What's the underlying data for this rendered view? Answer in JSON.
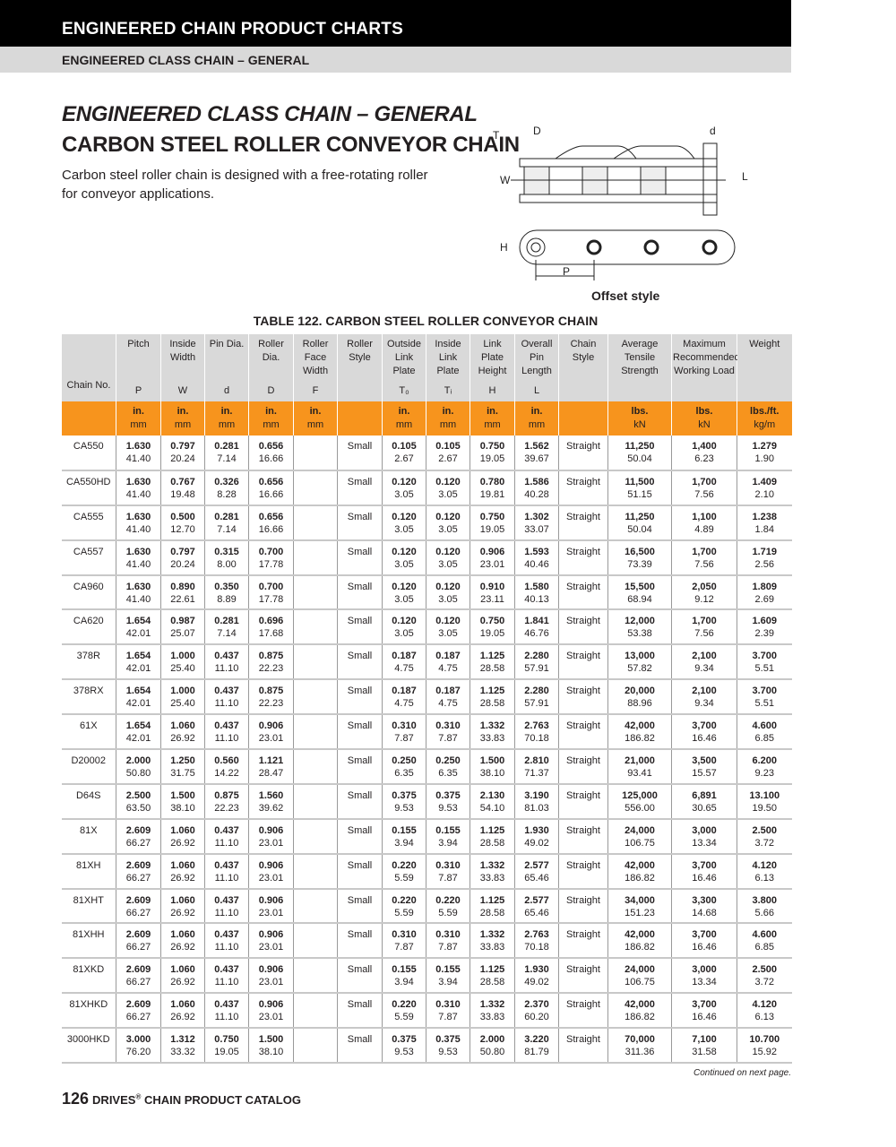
{
  "header": {
    "section": "ENGINEERED CHAIN PRODUCT CHARTS",
    "subsection": "ENGINEERED CLASS CHAIN – GENERAL"
  },
  "title": {
    "line1": "ENGINEERED CLASS CHAIN – GENERAL",
    "line2": "CARBON STEEL ROLLER CONVEYOR CHAIN",
    "description": "Carbon steel roller chain is designed with a free-rotating roller for conveyor applications."
  },
  "diagram": {
    "labels": [
      "T",
      "D",
      "d",
      "W",
      "L",
      "H",
      "P"
    ],
    "caption": "Offset style"
  },
  "table": {
    "title": "TABLE 122. CARBON STEEL ROLLER CONVEYOR CHAIN",
    "columns": [
      {
        "label": "Chain No.",
        "symbol": ""
      },
      {
        "label": "Pitch",
        "symbol": "P"
      },
      {
        "label": "Inside Width",
        "symbol": "W"
      },
      {
        "label": "Pin Dia.",
        "symbol": "d"
      },
      {
        "label": "Roller Dia.",
        "symbol": "D"
      },
      {
        "label": "Roller Face Width",
        "symbol": "F"
      },
      {
        "label": "Roller Style",
        "symbol": ""
      },
      {
        "label": "Outside Link Plate",
        "symbol": "T₀"
      },
      {
        "label": "Inside Link Plate",
        "symbol": "Tᵢ"
      },
      {
        "label": "Link Plate Height",
        "symbol": "H"
      },
      {
        "label": "Overall Pin Length",
        "symbol": "L"
      },
      {
        "label": "Chain Style",
        "symbol": ""
      },
      {
        "label": "Average Tensile Strength",
        "symbol": ""
      },
      {
        "label": "Maximum Recommended Working Load",
        "symbol": ""
      },
      {
        "label": "Weight",
        "symbol": ""
      }
    ],
    "units": [
      [
        "",
        ""
      ],
      [
        "in.",
        "mm"
      ],
      [
        "in.",
        "mm"
      ],
      [
        "in.",
        "mm"
      ],
      [
        "in.",
        "mm"
      ],
      [
        "in.",
        "mm"
      ],
      [
        "",
        ""
      ],
      [
        "in.",
        "mm"
      ],
      [
        "in.",
        "mm"
      ],
      [
        "in.",
        "mm"
      ],
      [
        "in.",
        "mm"
      ],
      [
        "",
        ""
      ],
      [
        "lbs.",
        "kN"
      ],
      [
        "lbs.",
        "kN"
      ],
      [
        "lbs./ft.",
        "kg/m"
      ]
    ],
    "rows": [
      [
        "CA550",
        [
          "1.630",
          "41.40"
        ],
        [
          "0.797",
          "20.24"
        ],
        [
          "0.281",
          "7.14"
        ],
        [
          "0.656",
          "16.66"
        ],
        "",
        "Small",
        [
          "0.105",
          "2.67"
        ],
        [
          "0.105",
          "2.67"
        ],
        [
          "0.750",
          "19.05"
        ],
        [
          "1.562",
          "39.67"
        ],
        "Straight",
        [
          "11,250",
          "50.04"
        ],
        [
          "1,400",
          "6.23"
        ],
        [
          "1.279",
          "1.90"
        ]
      ],
      [
        "CA550HD",
        [
          "1.630",
          "41.40"
        ],
        [
          "0.767",
          "19.48"
        ],
        [
          "0.326",
          "8.28"
        ],
        [
          "0.656",
          "16.66"
        ],
        "",
        "Small",
        [
          "0.120",
          "3.05"
        ],
        [
          "0.120",
          "3.05"
        ],
        [
          "0.780",
          "19.81"
        ],
        [
          "1.586",
          "40.28"
        ],
        "Straight",
        [
          "11,500",
          "51.15"
        ],
        [
          "1,700",
          "7.56"
        ],
        [
          "1.409",
          "2.10"
        ]
      ],
      [
        "CA555",
        [
          "1.630",
          "41.40"
        ],
        [
          "0.500",
          "12.70"
        ],
        [
          "0.281",
          "7.14"
        ],
        [
          "0.656",
          "16.66"
        ],
        "",
        "Small",
        [
          "0.120",
          "3.05"
        ],
        [
          "0.120",
          "3.05"
        ],
        [
          "0.750",
          "19.05"
        ],
        [
          "1.302",
          "33.07"
        ],
        "Straight",
        [
          "11,250",
          "50.04"
        ],
        [
          "1,100",
          "4.89"
        ],
        [
          "1.238",
          "1.84"
        ]
      ],
      [
        "CA557",
        [
          "1.630",
          "41.40"
        ],
        [
          "0.797",
          "20.24"
        ],
        [
          "0.315",
          "8.00"
        ],
        [
          "0.700",
          "17.78"
        ],
        "",
        "Small",
        [
          "0.120",
          "3.05"
        ],
        [
          "0.120",
          "3.05"
        ],
        [
          "0.906",
          "23.01"
        ],
        [
          "1.593",
          "40.46"
        ],
        "Straight",
        [
          "16,500",
          "73.39"
        ],
        [
          "1,700",
          "7.56"
        ],
        [
          "1.719",
          "2.56"
        ]
      ],
      [
        "CA960",
        [
          "1.630",
          "41.40"
        ],
        [
          "0.890",
          "22.61"
        ],
        [
          "0.350",
          "8.89"
        ],
        [
          "0.700",
          "17.78"
        ],
        "",
        "Small",
        [
          "0.120",
          "3.05"
        ],
        [
          "0.120",
          "3.05"
        ],
        [
          "0.910",
          "23.11"
        ],
        [
          "1.580",
          "40.13"
        ],
        "Straight",
        [
          "15,500",
          "68.94"
        ],
        [
          "2,050",
          "9.12"
        ],
        [
          "1.809",
          "2.69"
        ]
      ],
      [
        "CA620",
        [
          "1.654",
          "42.01"
        ],
        [
          "0.987",
          "25.07"
        ],
        [
          "0.281",
          "7.14"
        ],
        [
          "0.696",
          "17.68"
        ],
        "",
        "Small",
        [
          "0.120",
          "3.05"
        ],
        [
          "0.120",
          "3.05"
        ],
        [
          "0.750",
          "19.05"
        ],
        [
          "1.841",
          "46.76"
        ],
        "Straight",
        [
          "12,000",
          "53.38"
        ],
        [
          "1,700",
          "7.56"
        ],
        [
          "1.609",
          "2.39"
        ]
      ],
      [
        "378R",
        [
          "1.654",
          "42.01"
        ],
        [
          "1.000",
          "25.40"
        ],
        [
          "0.437",
          "11.10"
        ],
        [
          "0.875",
          "22.23"
        ],
        "",
        "Small",
        [
          "0.187",
          "4.75"
        ],
        [
          "0.187",
          "4.75"
        ],
        [
          "1.125",
          "28.58"
        ],
        [
          "2.280",
          "57.91"
        ],
        "Straight",
        [
          "13,000",
          "57.82"
        ],
        [
          "2,100",
          "9.34"
        ],
        [
          "3.700",
          "5.51"
        ]
      ],
      [
        "378RX",
        [
          "1.654",
          "42.01"
        ],
        [
          "1.000",
          "25.40"
        ],
        [
          "0.437",
          "11.10"
        ],
        [
          "0.875",
          "22.23"
        ],
        "",
        "Small",
        [
          "0.187",
          "4.75"
        ],
        [
          "0.187",
          "4.75"
        ],
        [
          "1.125",
          "28.58"
        ],
        [
          "2.280",
          "57.91"
        ],
        "Straight",
        [
          "20,000",
          "88.96"
        ],
        [
          "2,100",
          "9.34"
        ],
        [
          "3.700",
          "5.51"
        ]
      ],
      [
        "61X",
        [
          "1.654",
          "42.01"
        ],
        [
          "1.060",
          "26.92"
        ],
        [
          "0.437",
          "11.10"
        ],
        [
          "0.906",
          "23.01"
        ],
        "",
        "Small",
        [
          "0.310",
          "7.87"
        ],
        [
          "0.310",
          "7.87"
        ],
        [
          "1.332",
          "33.83"
        ],
        [
          "2.763",
          "70.18"
        ],
        "Straight",
        [
          "42,000",
          "186.82"
        ],
        [
          "3,700",
          "16.46"
        ],
        [
          "4.600",
          "6.85"
        ]
      ],
      [
        "D20002",
        [
          "2.000",
          "50.80"
        ],
        [
          "1.250",
          "31.75"
        ],
        [
          "0.560",
          "14.22"
        ],
        [
          "1.121",
          "28.47"
        ],
        "",
        "Small",
        [
          "0.250",
          "6.35"
        ],
        [
          "0.250",
          "6.35"
        ],
        [
          "1.500",
          "38.10"
        ],
        [
          "2.810",
          "71.37"
        ],
        "Straight",
        [
          "21,000",
          "93.41"
        ],
        [
          "3,500",
          "15.57"
        ],
        [
          "6.200",
          "9.23"
        ]
      ],
      [
        "D64S",
        [
          "2.500",
          "63.50"
        ],
        [
          "1.500",
          "38.10"
        ],
        [
          "0.875",
          "22.23"
        ],
        [
          "1.560",
          "39.62"
        ],
        "",
        "Small",
        [
          "0.375",
          "9.53"
        ],
        [
          "0.375",
          "9.53"
        ],
        [
          "2.130",
          "54.10"
        ],
        [
          "3.190",
          "81.03"
        ],
        "Straight",
        [
          "125,000",
          "556.00"
        ],
        [
          "6,891",
          "30.65"
        ],
        [
          "13.100",
          "19.50"
        ]
      ],
      [
        "81X",
        [
          "2.609",
          "66.27"
        ],
        [
          "1.060",
          "26.92"
        ],
        [
          "0.437",
          "11.10"
        ],
        [
          "0.906",
          "23.01"
        ],
        "",
        "Small",
        [
          "0.155",
          "3.94"
        ],
        [
          "0.155",
          "3.94"
        ],
        [
          "1.125",
          "28.58"
        ],
        [
          "1.930",
          "49.02"
        ],
        "Straight",
        [
          "24,000",
          "106.75"
        ],
        [
          "3,000",
          "13.34"
        ],
        [
          "2.500",
          "3.72"
        ]
      ],
      [
        "81XH",
        [
          "2.609",
          "66.27"
        ],
        [
          "1.060",
          "26.92"
        ],
        [
          "0.437",
          "11.10"
        ],
        [
          "0.906",
          "23.01"
        ],
        "",
        "Small",
        [
          "0.220",
          "5.59"
        ],
        [
          "0.310",
          "7.87"
        ],
        [
          "1.332",
          "33.83"
        ],
        [
          "2.577",
          "65.46"
        ],
        "Straight",
        [
          "42,000",
          "186.82"
        ],
        [
          "3,700",
          "16.46"
        ],
        [
          "4.120",
          "6.13"
        ]
      ],
      [
        "81XHT",
        [
          "2.609",
          "66.27"
        ],
        [
          "1.060",
          "26.92"
        ],
        [
          "0.437",
          "11.10"
        ],
        [
          "0.906",
          "23.01"
        ],
        "",
        "Small",
        [
          "0.220",
          "5.59"
        ],
        [
          "0.220",
          "5.59"
        ],
        [
          "1.125",
          "28.58"
        ],
        [
          "2.577",
          "65.46"
        ],
        "Straight",
        [
          "34,000",
          "151.23"
        ],
        [
          "3,300",
          "14.68"
        ],
        [
          "3.800",
          "5.66"
        ]
      ],
      [
        "81XHH",
        [
          "2.609",
          "66.27"
        ],
        [
          "1.060",
          "26.92"
        ],
        [
          "0.437",
          "11.10"
        ],
        [
          "0.906",
          "23.01"
        ],
        "",
        "Small",
        [
          "0.310",
          "7.87"
        ],
        [
          "0.310",
          "7.87"
        ],
        [
          "1.332",
          "33.83"
        ],
        [
          "2.763",
          "70.18"
        ],
        "Straight",
        [
          "42,000",
          "186.82"
        ],
        [
          "3,700",
          "16.46"
        ],
        [
          "4.600",
          "6.85"
        ]
      ],
      [
        "81XKD",
        [
          "2.609",
          "66.27"
        ],
        [
          "1.060",
          "26.92"
        ],
        [
          "0.437",
          "11.10"
        ],
        [
          "0.906",
          "23.01"
        ],
        "",
        "Small",
        [
          "0.155",
          "3.94"
        ],
        [
          "0.155",
          "3.94"
        ],
        [
          "1.125",
          "28.58"
        ],
        [
          "1.930",
          "49.02"
        ],
        "Straight",
        [
          "24,000",
          "106.75"
        ],
        [
          "3,000",
          "13.34"
        ],
        [
          "2.500",
          "3.72"
        ]
      ],
      [
        "81XHKD",
        [
          "2.609",
          "66.27"
        ],
        [
          "1.060",
          "26.92"
        ],
        [
          "0.437",
          "11.10"
        ],
        [
          "0.906",
          "23.01"
        ],
        "",
        "Small",
        [
          "0.220",
          "5.59"
        ],
        [
          "0.310",
          "7.87"
        ],
        [
          "1.332",
          "33.83"
        ],
        [
          "2.370",
          "60.20"
        ],
        "Straight",
        [
          "42,000",
          "186.82"
        ],
        [
          "3,700",
          "16.46"
        ],
        [
          "4.120",
          "6.13"
        ]
      ],
      [
        "3000HKD",
        [
          "3.000",
          "76.20"
        ],
        [
          "1.312",
          "33.32"
        ],
        [
          "0.750",
          "19.05"
        ],
        [
          "1.500",
          "38.10"
        ],
        "",
        "Small",
        [
          "0.375",
          "9.53"
        ],
        [
          "0.375",
          "9.53"
        ],
        [
          "2.000",
          "50.80"
        ],
        [
          "3.220",
          "81.79"
        ],
        "Straight",
        [
          "70,000",
          "311.36"
        ],
        [
          "7,100",
          "31.58"
        ],
        [
          "10.700",
          "15.92"
        ]
      ]
    ],
    "continued": "Continued on next page."
  },
  "footer": {
    "page": "126",
    "brand": "DRIVES",
    "trademark": "®",
    "catalog": " CHAIN PRODUCT CATALOG"
  }
}
